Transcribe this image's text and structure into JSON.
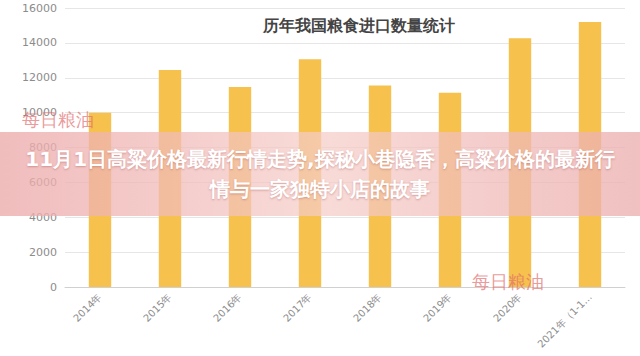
{
  "chart_data": {
    "type": "bar",
    "title": "历年我国粮食进口数量统计",
    "categories": [
      "2014年",
      "2015年",
      "2016年",
      "2017年",
      "2018年",
      "2019年",
      "2020年",
      "2021年（1-1…"
    ],
    "values": [
      10000,
      12450,
      11470,
      13060,
      11550,
      11140,
      14260,
      15200
    ],
    "color": "#f6c14c",
    "ylim": [
      0,
      16000
    ],
    "yticks": [
      0,
      2000,
      4000,
      6000,
      8000,
      10000,
      12000,
      14000,
      16000
    ],
    "grid": true
  },
  "banner": "11月1日高粱价格最新行情走势,探秘小巷隐香，高粱价格的最新行情与一家独特小店的故事",
  "watermarks": [
    "每日粮油",
    "每日粮油"
  ]
}
